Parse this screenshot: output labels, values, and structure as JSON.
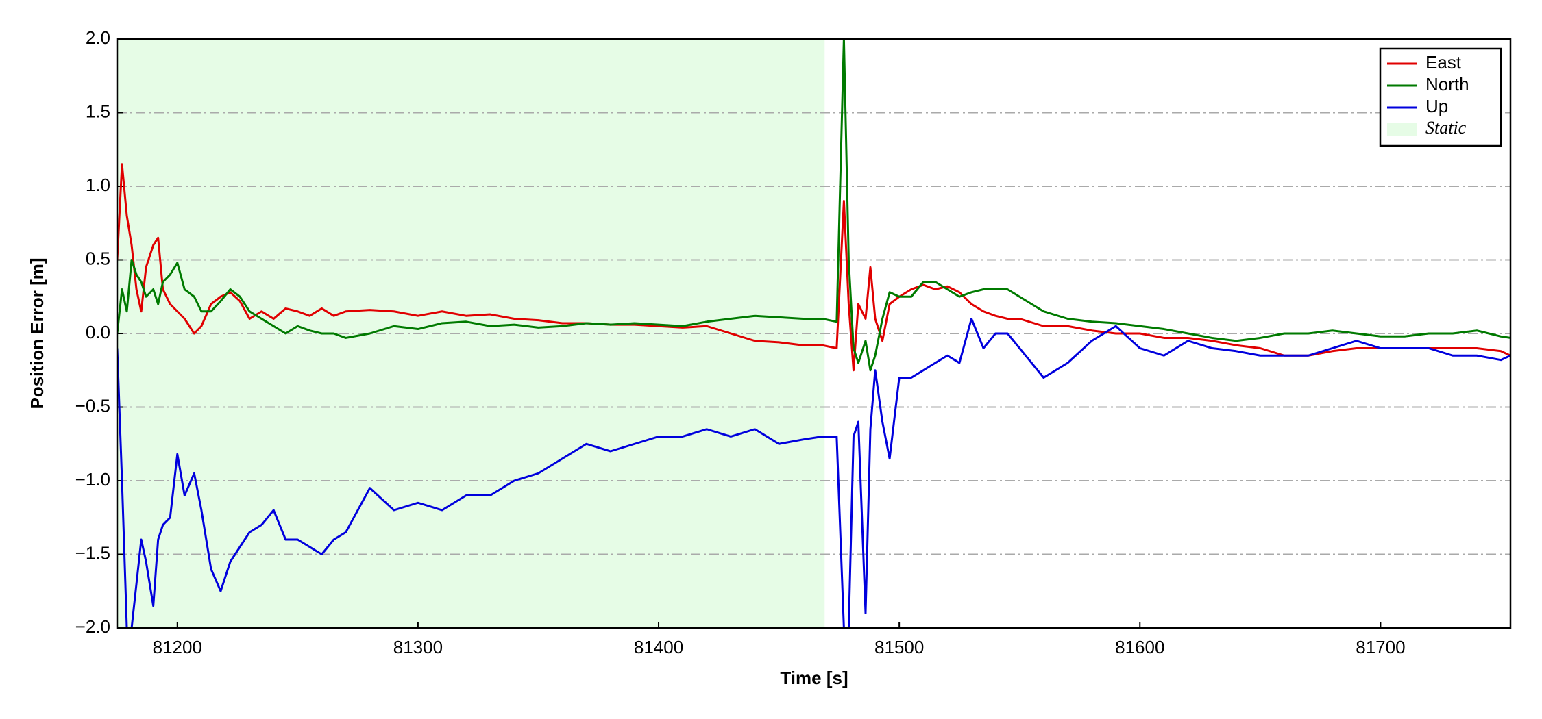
{
  "chart_data": {
    "type": "line",
    "xlabel": "Time [s]",
    "ylabel": "Position Error [m]",
    "x": [
      81175,
      81177,
      81179,
      81181,
      81183,
      81185,
      81187,
      81190,
      81192,
      81194,
      81197,
      81200,
      81203,
      81207,
      81210,
      81214,
      81218,
      81222,
      81226,
      81230,
      81235,
      81240,
      81245,
      81250,
      81255,
      81260,
      81265,
      81270,
      81280,
      81290,
      81300,
      81310,
      81320,
      81330,
      81340,
      81350,
      81360,
      81370,
      81380,
      81390,
      81400,
      81410,
      81420,
      81430,
      81440,
      81450,
      81460,
      81468,
      81474,
      81477,
      81479,
      81481,
      81483,
      81486,
      81488,
      81490,
      81493,
      81496,
      81500,
      81505,
      81510,
      81515,
      81520,
      81525,
      81530,
      81535,
      81540,
      81545,
      81550,
      81560,
      81570,
      81580,
      81590,
      81600,
      81610,
      81620,
      81630,
      81640,
      81650,
      81660,
      81670,
      81680,
      81690,
      81700,
      81710,
      81720,
      81730,
      81740,
      81750,
      81754
    ],
    "series": [
      {
        "name": "East",
        "color": "#e00000",
        "values": [
          0.5,
          1.15,
          0.8,
          0.6,
          0.3,
          0.15,
          0.45,
          0.6,
          0.65,
          0.3,
          0.2,
          0.15,
          0.1,
          0.0,
          0.05,
          0.2,
          0.25,
          0.28,
          0.22,
          0.1,
          0.15,
          0.1,
          0.17,
          0.15,
          0.12,
          0.17,
          0.12,
          0.15,
          0.16,
          0.15,
          0.12,
          0.15,
          0.12,
          0.13,
          0.1,
          0.09,
          0.07,
          0.07,
          0.06,
          0.06,
          0.05,
          0.04,
          0.05,
          0.0,
          -0.05,
          -0.06,
          -0.08,
          -0.08,
          -0.1,
          0.9,
          0.2,
          -0.25,
          0.2,
          0.1,
          0.45,
          0.1,
          -0.05,
          0.2,
          0.25,
          0.3,
          0.33,
          0.3,
          0.32,
          0.28,
          0.2,
          0.15,
          0.12,
          0.1,
          0.1,
          0.05,
          0.05,
          0.02,
          0.0,
          0.0,
          -0.03,
          -0.03,
          -0.05,
          -0.08,
          -0.1,
          -0.15,
          -0.15,
          -0.12,
          -0.1,
          -0.1,
          -0.1,
          -0.1,
          -0.1,
          -0.1,
          -0.12,
          -0.15
        ]
      },
      {
        "name": "North",
        "color": "#007a00",
        "values": [
          0.0,
          0.3,
          0.15,
          0.5,
          0.4,
          0.35,
          0.25,
          0.3,
          0.2,
          0.35,
          0.4,
          0.48,
          0.3,
          0.25,
          0.15,
          0.15,
          0.22,
          0.3,
          0.25,
          0.15,
          0.1,
          0.05,
          0.0,
          0.05,
          0.02,
          0.0,
          0.0,
          -0.03,
          0.0,
          0.05,
          0.03,
          0.07,
          0.08,
          0.05,
          0.06,
          0.04,
          0.05,
          0.07,
          0.06,
          0.07,
          0.06,
          0.05,
          0.08,
          0.1,
          0.12,
          0.11,
          0.1,
          0.1,
          0.08,
          2.0,
          0.5,
          -0.1,
          -0.2,
          -0.05,
          -0.25,
          -0.15,
          0.1,
          0.28,
          0.25,
          0.25,
          0.35,
          0.35,
          0.3,
          0.25,
          0.28,
          0.3,
          0.3,
          0.3,
          0.25,
          0.15,
          0.1,
          0.08,
          0.07,
          0.05,
          0.03,
          0.0,
          -0.03,
          -0.05,
          -0.03,
          0.0,
          0.0,
          0.02,
          0.0,
          -0.02,
          -0.02,
          0.0,
          0.0,
          0.02,
          -0.02,
          -0.03
        ]
      },
      {
        "name": "Up",
        "color": "#0000dd",
        "values": [
          -0.1,
          -1.0,
          -2.0,
          -2.0,
          -1.7,
          -1.4,
          -1.55,
          -1.85,
          -1.4,
          -1.3,
          -1.25,
          -0.82,
          -1.1,
          -0.95,
          -1.2,
          -1.6,
          -1.75,
          -1.55,
          -1.45,
          -1.35,
          -1.3,
          -1.2,
          -1.4,
          -1.4,
          -1.45,
          -1.5,
          -1.4,
          -1.35,
          -1.05,
          -1.2,
          -1.15,
          -1.2,
          -1.1,
          -1.1,
          -1.0,
          -0.95,
          -0.85,
          -0.75,
          -0.8,
          -0.75,
          -0.7,
          -0.7,
          -0.65,
          -0.7,
          -0.65,
          -0.75,
          -0.72,
          -0.7,
          -0.7,
          -2.0,
          -2.0,
          -0.7,
          -0.6,
          -1.9,
          -0.65,
          -0.25,
          -0.6,
          -0.85,
          -0.3,
          -0.3,
          -0.25,
          -0.2,
          -0.15,
          -0.2,
          0.1,
          -0.1,
          0.0,
          0.0,
          -0.1,
          -0.3,
          -0.2,
          -0.05,
          0.05,
          -0.1,
          -0.15,
          -0.05,
          -0.1,
          -0.12,
          -0.15,
          -0.15,
          -0.15,
          -0.1,
          -0.05,
          -0.1,
          -0.1,
          -0.1,
          -0.15,
          -0.15,
          -0.18,
          -0.15
        ]
      }
    ],
    "shaded_region": {
      "label": "Static",
      "x": [
        81175,
        81469
      ],
      "color": "#e6fce6"
    },
    "xlim": [
      81175,
      81754
    ],
    "xticks": [
      81200,
      81300,
      81400,
      81500,
      81600,
      81700
    ],
    "ylim": [
      -2,
      2
    ],
    "yticks": [
      {
        "value": -2,
        "label": "−2.0"
      },
      {
        "value": -1.5,
        "label": "−1.5"
      },
      {
        "value": -1,
        "label": "−1.0"
      },
      {
        "value": -0.5,
        "label": "−0.5"
      },
      {
        "value": 0,
        "label": "0.0"
      },
      {
        "value": 0.5,
        "label": "0.5"
      },
      {
        "value": 1,
        "label": "1.0"
      },
      {
        "value": 1.5,
        "label": "1.5"
      },
      {
        "value": 2,
        "label": "2.0"
      }
    ],
    "grid": true,
    "legend": "upper right"
  }
}
